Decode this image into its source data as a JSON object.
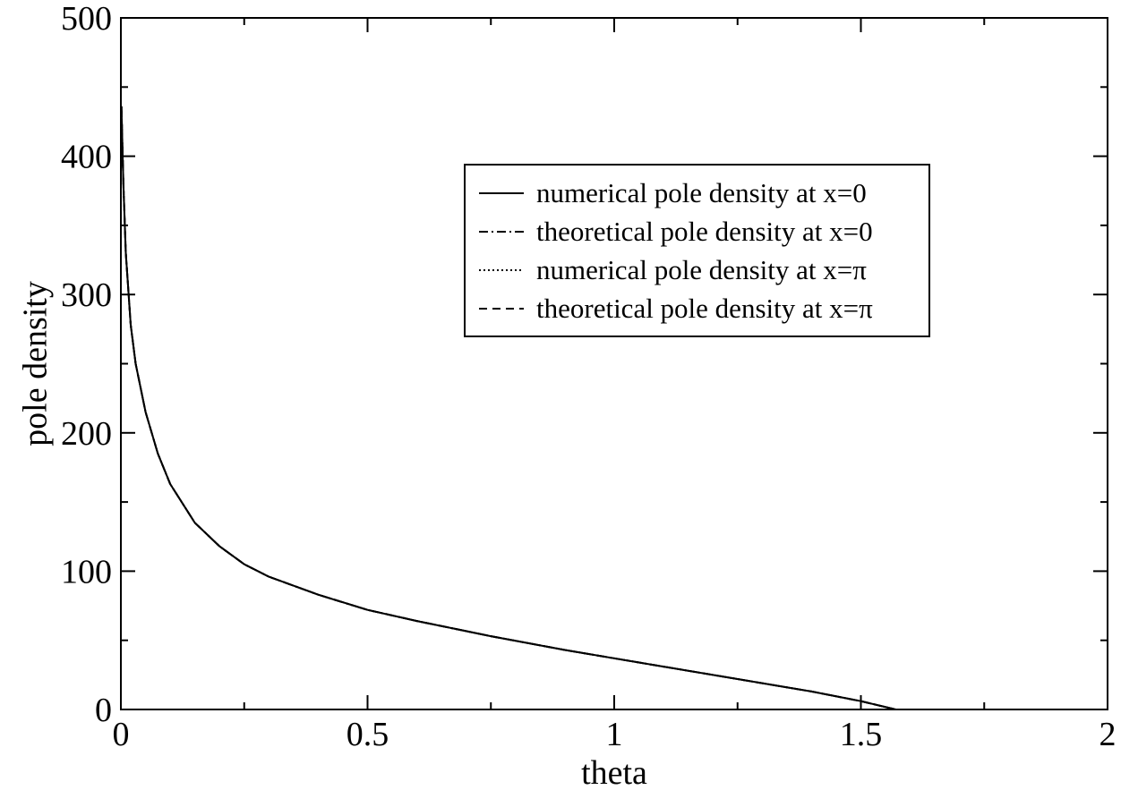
{
  "chart_data": {
    "type": "line",
    "title": "",
    "xlabel": "theta",
    "ylabel": "pole density",
    "xlim": [
      0,
      2
    ],
    "ylim": [
      0,
      500
    ],
    "x_major_ticks": [
      0,
      0.5,
      1,
      1.5,
      2
    ],
    "x_tick_labels": [
      "0",
      "0.5",
      "1",
      "1.5",
      "2"
    ],
    "x_minor_step": 0.25,
    "y_major_ticks": [
      0,
      100,
      200,
      300,
      400,
      500
    ],
    "y_tick_labels": [
      "0",
      "100",
      "200",
      "300",
      "400",
      "500"
    ],
    "y_minor_step": 50,
    "grid": false,
    "legend_position": "upper right, inside plot",
    "series": [
      {
        "name": "numerical pole density at x=0",
        "line_style": "solid",
        "color": "#000000",
        "x": [
          0.001,
          0.005,
          0.01,
          0.02,
          0.03,
          0.05,
          0.075,
          0.1,
          0.15,
          0.2,
          0.25,
          0.3,
          0.4,
          0.5,
          0.6,
          0.75,
          0.9,
          1.0,
          1.1,
          1.25,
          1.4,
          1.5,
          1.5708
        ],
        "y": [
          436,
          380,
          330,
          278,
          250,
          215,
          185,
          163,
          135,
          118,
          105,
          96,
          83,
          72,
          64,
          53,
          43,
          37,
          31,
          22,
          13,
          6,
          0
        ]
      },
      {
        "name": "theoretical pole density at x=0",
        "line_style": "dash-dot",
        "color": "#000000",
        "x": [
          0.001,
          0.005,
          0.01,
          0.02,
          0.03,
          0.05,
          0.075,
          0.1,
          0.15,
          0.2,
          0.25,
          0.3,
          0.4,
          0.5,
          0.6,
          0.75,
          0.9,
          1.0,
          1.1,
          1.25,
          1.4,
          1.5,
          1.5708
        ],
        "y": [
          436,
          380,
          330,
          278,
          250,
          215,
          185,
          163,
          135,
          118,
          105,
          96,
          83,
          72,
          64,
          53,
          43,
          37,
          31,
          22,
          13,
          6,
          0
        ]
      },
      {
        "name": "numerical pole density at x=π",
        "line_style": "dotted",
        "color": "#000000",
        "x": [
          0.001,
          0.005,
          0.01,
          0.02,
          0.03,
          0.05,
          0.075,
          0.1,
          0.15,
          0.2,
          0.25,
          0.3,
          0.4,
          0.5,
          0.6,
          0.75,
          0.9,
          1.0,
          1.1,
          1.25,
          1.4,
          1.5,
          1.5708
        ],
        "y": [
          436,
          380,
          330,
          278,
          250,
          215,
          185,
          163,
          135,
          118,
          105,
          96,
          83,
          72,
          64,
          53,
          43,
          37,
          31,
          22,
          13,
          6,
          0
        ]
      },
      {
        "name": "theoretical pole density at x=π",
        "line_style": "dashed",
        "color": "#000000",
        "x": [
          0.001,
          0.005,
          0.01,
          0.02,
          0.03,
          0.05,
          0.075,
          0.1,
          0.15,
          0.2,
          0.25,
          0.3,
          0.4,
          0.5,
          0.6,
          0.75,
          0.9,
          1.0,
          1.1,
          1.25,
          1.4,
          1.5,
          1.5708
        ],
        "y": [
          436,
          380,
          330,
          278,
          250,
          215,
          185,
          163,
          135,
          118,
          105,
          96,
          83,
          72,
          64,
          53,
          43,
          37,
          31,
          22,
          13,
          6,
          0
        ]
      }
    ]
  }
}
